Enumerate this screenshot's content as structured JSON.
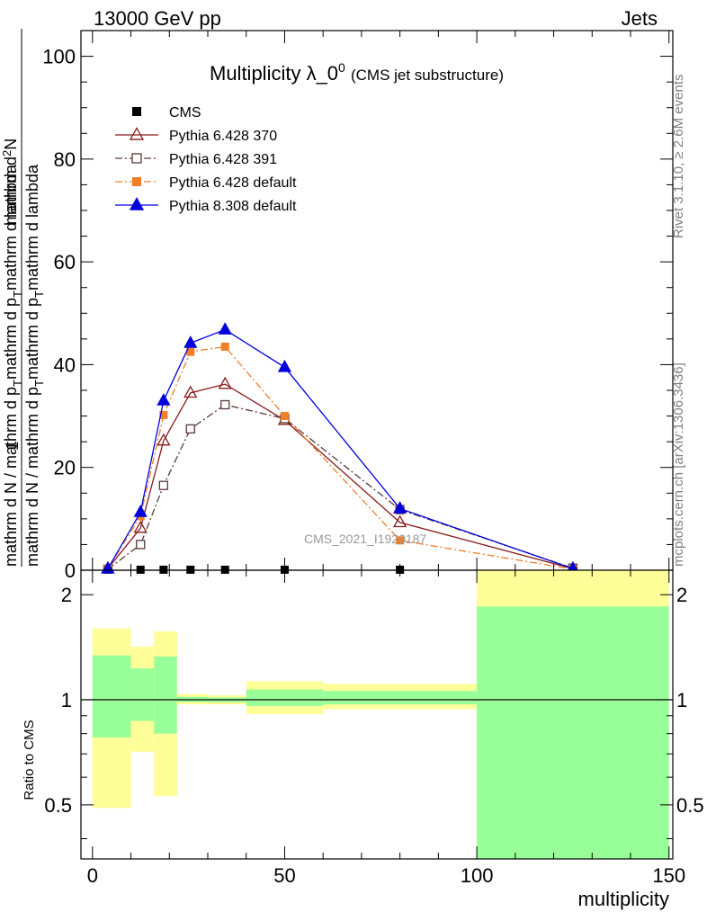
{
  "header": {
    "left": "13000 GeV pp",
    "right": "Jets"
  },
  "side_labels": {
    "rivet": "Rivet 3.1.10, ≥ 2.6M events",
    "mcplots": "mcplots.cern.ch [arXiv:1306.3436]"
  },
  "chart_data": [
    {
      "type": "line",
      "title": "Multiplicity λ_0",
      "title_sup": "0",
      "subtitle": "(CMS jet substructure)",
      "watermark": "CMS_2021_I1920187",
      "ylabel_num": "1",
      "ylabel_den_parts": [
        "mathrm d N / mathrm d p",
        "T",
        "mathrm d p",
        "T",
        "mathrm d lambda"
      ],
      "ylabel_num_parts": [
        "mathrm d",
        "2",
        "N"
      ],
      "xlim": [
        -3,
        151
      ],
      "ylim": [
        0,
        105
      ],
      "yticks": [
        0,
        20,
        40,
        60,
        80,
        100
      ],
      "series": [
        {
          "name": "CMS",
          "color": "#000000",
          "marker": "square-filled",
          "dash": "none",
          "x": [
            4,
            12.5,
            18.5,
            25.5,
            34.5,
            50,
            80,
            125
          ],
          "y": [
            0.1,
            0.1,
            0.1,
            0.1,
            0.1,
            0.1,
            0.1,
            0.1
          ]
        },
        {
          "name": "Pythia 6.428 370",
          "color": "#8b1a1a",
          "marker": "triangle-open",
          "dash": "solid",
          "x": [
            4,
            12.5,
            18.5,
            25.5,
            34.5,
            50,
            80,
            125
          ],
          "y": [
            0.3,
            8.2,
            25.2,
            34.5,
            36.2,
            29.2,
            9.3,
            0.3
          ]
        },
        {
          "name": "Pythia 6.428 391",
          "color": "#5a3a3a",
          "marker": "square-open",
          "dash": "dashdot",
          "x": [
            4,
            12.5,
            18.5,
            25.5,
            34.5,
            50,
            80,
            125
          ],
          "y": [
            0.2,
            5.0,
            16.5,
            27.5,
            32.2,
            29.5,
            11.8,
            0.4
          ]
        },
        {
          "name": "Pythia 6.428 default",
          "color": "#f07f2a",
          "marker": "square-filled",
          "dash": "dashdot",
          "x": [
            4,
            12.5,
            18.5,
            25.5,
            34.5,
            50,
            80,
            125
          ],
          "y": [
            0.3,
            10.5,
            30.2,
            42.5,
            43.5,
            30.0,
            5.8,
            0.2
          ]
        },
        {
          "name": "Pythia 8.308 default",
          "color": "#0000dd",
          "marker": "triangle-filled",
          "dash": "solid",
          "x": [
            4,
            12.5,
            18.5,
            25.5,
            34.5,
            50,
            80,
            125
          ],
          "y": [
            0.3,
            11.3,
            33.0,
            44.2,
            46.8,
            39.5,
            12.0,
            0.3
          ]
        }
      ]
    },
    {
      "type": "area",
      "ylabel": "Ratio to CMS",
      "xlabel": "multiplicity",
      "xlim": [
        -3,
        151
      ],
      "ylim": [
        0.35,
        2.35
      ],
      "yticks": [
        0.5,
        1,
        2
      ],
      "xticks": [
        0,
        50,
        100,
        150
      ],
      "bins": [
        {
          "lo": 0,
          "hi": 10,
          "green": [
            0.78,
            1.34
          ],
          "yellow": [
            0.49,
            1.6
          ]
        },
        {
          "lo": 10,
          "hi": 16,
          "green": [
            0.87,
            1.23
          ],
          "yellow": [
            0.71,
            1.42
          ]
        },
        {
          "lo": 16,
          "hi": 22,
          "green": [
            0.8,
            1.33
          ],
          "yellow": [
            0.53,
            1.57
          ]
        },
        {
          "lo": 22,
          "hi": 30,
          "green": [
            0.985,
            1.02
          ],
          "yellow": [
            0.97,
            1.04
          ]
        },
        {
          "lo": 30,
          "hi": 40,
          "green": [
            0.985,
            1.015
          ],
          "yellow": [
            0.97,
            1.03
          ]
        },
        {
          "lo": 40,
          "hi": 60,
          "green": [
            0.96,
            1.07
          ],
          "yellow": [
            0.91,
            1.13
          ]
        },
        {
          "lo": 60,
          "hi": 100,
          "green": [
            0.97,
            1.06
          ],
          "yellow": [
            0.94,
            1.11
          ]
        },
        {
          "lo": 100,
          "hi": 150,
          "green": [
            0.35,
            1.85
          ],
          "yellow": [
            0.35,
            2.35
          ]
        }
      ],
      "reference_line": 1
    }
  ],
  "colors": {
    "band_green": "#99ff99",
    "band_yellow": "#ffff99"
  }
}
